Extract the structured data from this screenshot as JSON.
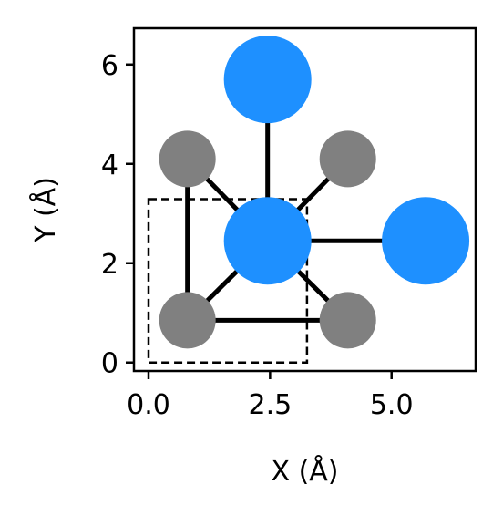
{
  "chart_data": {
    "type": "scatter",
    "title": "",
    "xlabel": "X (Å)",
    "ylabel": "Y (Å)",
    "xlim": [
      -0.3,
      6.73
    ],
    "ylim": [
      -0.17,
      6.73
    ],
    "xticks": [
      0.0,
      2.5,
      5.0
    ],
    "xtick_labels": [
      "0.0",
      "2.5",
      "5.0"
    ],
    "yticks": [
      0,
      2,
      4,
      6
    ],
    "ytick_labels": [
      "0",
      "2",
      "4",
      "6"
    ],
    "grid": false,
    "atoms": [
      {
        "id": "center",
        "x": 2.45,
        "y": 2.45,
        "element": "large",
        "color": "#1e90ff"
      },
      {
        "id": "top",
        "x": 2.45,
        "y": 5.7,
        "element": "large",
        "color": "#1e90ff"
      },
      {
        "id": "right",
        "x": 5.7,
        "y": 2.45,
        "element": "large",
        "color": "#1e90ff"
      },
      {
        "id": "bl",
        "x": 0.8,
        "y": 0.85,
        "element": "small",
        "color": "#808080"
      },
      {
        "id": "br",
        "x": 4.1,
        "y": 0.85,
        "element": "small",
        "color": "#808080"
      },
      {
        "id": "tl",
        "x": 0.8,
        "y": 4.1,
        "element": "small",
        "color": "#808080"
      },
      {
        "id": "tr",
        "x": 4.1,
        "y": 4.1,
        "element": "small",
        "color": "#808080"
      }
    ],
    "bonds": [
      [
        "center",
        "top"
      ],
      [
        "center",
        "right"
      ],
      [
        "center",
        "tl"
      ],
      [
        "center",
        "tr"
      ],
      [
        "center",
        "bl"
      ],
      [
        "center",
        "br"
      ],
      [
        "tl",
        "bl"
      ],
      [
        "bl",
        "br"
      ]
    ],
    "unit_cell": {
      "x0": 0,
      "y0": 0,
      "x1": 3.26,
      "y1": 3.29,
      "style": "dashed"
    },
    "colors": {
      "large": "#1e90ff",
      "small": "#808080",
      "bond": "#000000"
    }
  }
}
